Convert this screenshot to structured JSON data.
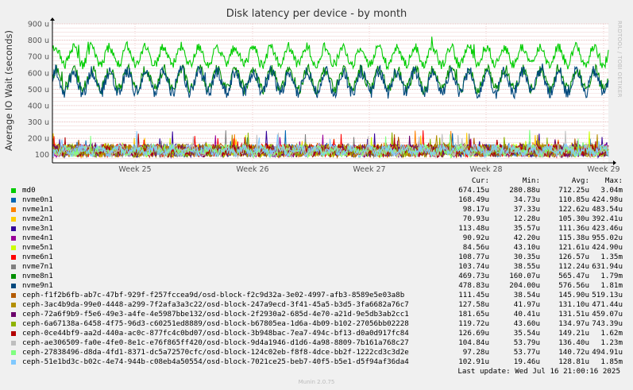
{
  "chart_data": {
    "type": "line",
    "title": "Disk latency per device - by month",
    "ylabel": "Average IO Wait (seconds)",
    "ylim": [
      50,
      900
    ],
    "yticks": [
      {
        "value": 100,
        "label": "100"
      },
      {
        "value": 200,
        "label": "200 u"
      },
      {
        "value": 300,
        "label": "300 u"
      },
      {
        "value": 400,
        "label": "400 u"
      },
      {
        "value": 500,
        "label": "500 u"
      },
      {
        "value": 600,
        "label": "600 u"
      },
      {
        "value": 700,
        "label": "700 u"
      },
      {
        "value": 800,
        "label": "800 u"
      },
      {
        "value": 900,
        "label": "900 u"
      }
    ],
    "xticks": [
      "Week 25",
      "Week 26",
      "Week 27",
      "Week 28",
      "Week 29"
    ],
    "grid": true,
    "series": [
      {
        "name": "md0",
        "color": "#00cc00",
        "cur": "674.15u",
        "min": "280.88u",
        "avg": "712.25u",
        "max": "3.04m"
      },
      {
        "name": "nvme0n1",
        "color": "#0066b3",
        "cur": "168.49u",
        "min": "34.73u",
        "avg": "110.85u",
        "max": "424.98u"
      },
      {
        "name": "nvme1n1",
        "color": "#ff8000",
        "cur": "98.17u",
        "min": "37.33u",
        "avg": "122.62u",
        "max": "483.54u"
      },
      {
        "name": "nvme2n1",
        "color": "#ffcc00",
        "cur": "70.93u",
        "min": "12.28u",
        "avg": "105.30u",
        "max": "392.41u"
      },
      {
        "name": "nvme3n1",
        "color": "#330099",
        "cur": "113.48u",
        "min": "35.57u",
        "avg": "111.36u",
        "max": "423.46u"
      },
      {
        "name": "nvme4n1",
        "color": "#990099",
        "cur": "90.92u",
        "min": "42.20u",
        "avg": "115.38u",
        "max": "955.02u"
      },
      {
        "name": "nvme5n1",
        "color": "#ccff00",
        "cur": "84.56u",
        "min": "43.10u",
        "avg": "121.61u",
        "max": "424.90u"
      },
      {
        "name": "nvme6n1",
        "color": "#ff0000",
        "cur": "108.77u",
        "min": "30.35u",
        "avg": "126.57u",
        "max": "1.35m"
      },
      {
        "name": "nvme7n1",
        "color": "#808080",
        "cur": "103.74u",
        "min": "38.55u",
        "avg": "112.24u",
        "max": "631.94u"
      },
      {
        "name": "nvme8n1",
        "color": "#008f00",
        "cur": "469.73u",
        "min": "160.07u",
        "avg": "565.47u",
        "max": "1.79m"
      },
      {
        "name": "nvme9n1",
        "color": "#00487d",
        "cur": "478.83u",
        "min": "204.00u",
        "avg": "576.56u",
        "max": "1.81m"
      },
      {
        "name": "ceph-f1f2b6fb-ab7c-47bf-929f-f257fccea9d/osd-block-f2c9d32a-3e02-4997-afb3-8589e5e03a8b",
        "color": "#b35a00",
        "cur": "111.45u",
        "min": "38.54u",
        "avg": "145.90u",
        "max": "519.13u"
      },
      {
        "name": "ceph-3ac4b9da-99e0-4448-a299-7f2afa3a3c22/osd-block-247a9ecd-3f41-45a5-b3d5-3fa6682a76c7",
        "color": "#b38f00",
        "cur": "127.58u",
        "min": "41.97u",
        "avg": "131.10u",
        "max": "471.44u"
      },
      {
        "name": "ceph-72a6f9b9-f5e6-49e3-a4fe-4e5987bbe132/osd-block-2f2930a2-685d-4e70-a21d-9e5db3ab2cc1",
        "color": "#6b006b",
        "cur": "181.65u",
        "min": "40.41u",
        "avg": "131.51u",
        "max": "459.07u"
      },
      {
        "name": "ceph-6a67138a-6458-4f75-96d3-c60251ed8889/osd-block-b67805ea-1d6a-4b09-b102-27056bb02228",
        "color": "#8fb300",
        "cur": "119.72u",
        "min": "43.60u",
        "avg": "134.97u",
        "max": "743.39u"
      },
      {
        "name": "ceph-0ce44bf9-aa2d-440a-ac0c-877fc4c0bd07/osd-block-3b948bac-7ea7-494c-bf13-d0a0d917fc84",
        "color": "#b30000",
        "cur": "126.69u",
        "min": "35.54u",
        "avg": "149.21u",
        "max": "1.62m"
      },
      {
        "name": "ceph-ae306509-fa0e-4fe0-8e1c-e76f865ff420/osd-block-9d4a1946-d1d6-4a98-8809-7b161a768c27",
        "color": "#bebebe",
        "cur": "104.84u",
        "min": "53.79u",
        "avg": "136.40u",
        "max": "1.23m"
      },
      {
        "name": "ceph-27838496-d8da-4fd1-8371-dc5a72570cfc/osd-block-124c02eb-f8f8-4dce-bb2f-1222cd3c3d2e",
        "color": "#80ff80",
        "cur": "97.28u",
        "min": "53.77u",
        "avg": "140.72u",
        "max": "494.91u"
      },
      {
        "name": "ceph-51e1bd3c-b02c-4e74-944b-c08eb4a50554/osd-block-7021ce25-beb7-40f5-b5e1-d5f94af36da4",
        "color": "#80c9ff",
        "cur": "102.91u",
        "min": "19.46u",
        "avg": "128.81u",
        "max": "1.85m"
      }
    ]
  },
  "legend_headers": {
    "cur": "Cur:",
    "min": "Min:",
    "avg": "Avg:",
    "max": "Max:"
  },
  "last_update": "Last update:  Wed Jul 16 21:00:16 2025",
  "watermark": "RRDTOOL / TOBI OETIKER",
  "footer": "Munin 2.0.75"
}
